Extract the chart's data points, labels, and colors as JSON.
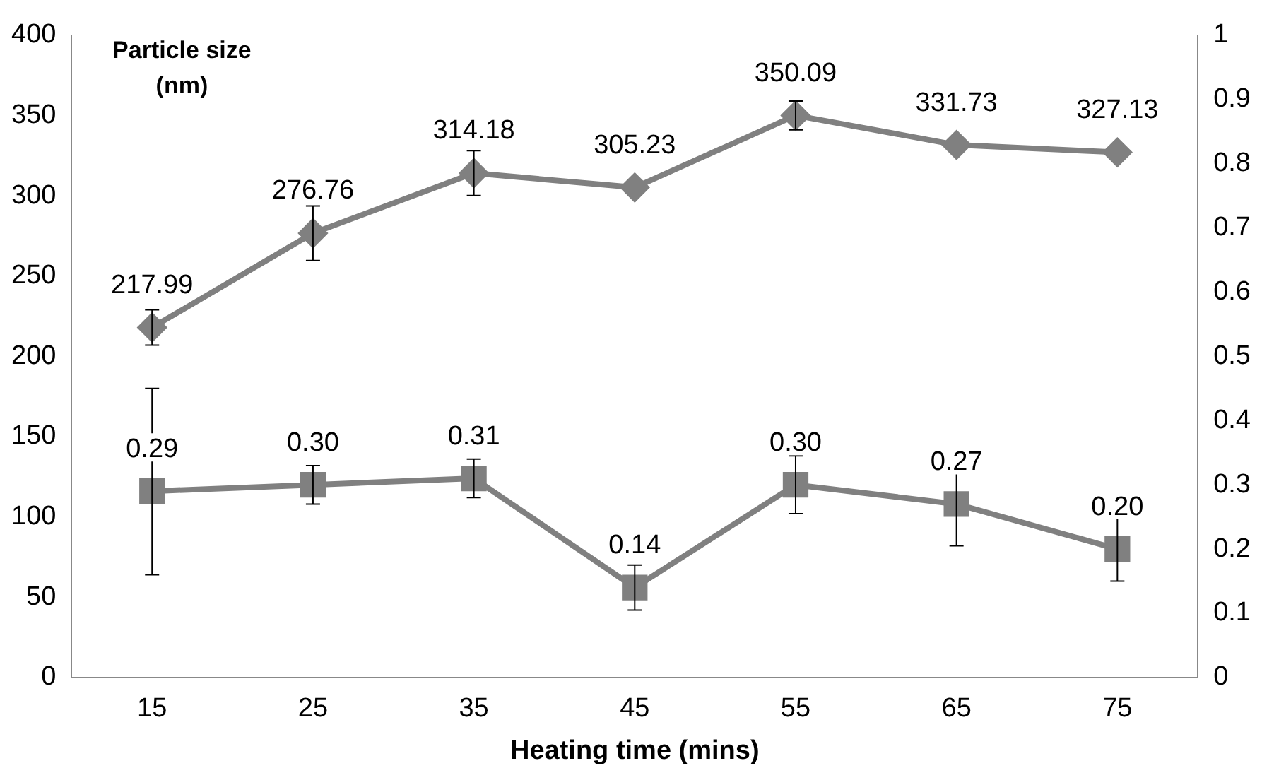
{
  "chart_data": {
    "type": "line",
    "xlabel": "Heating time (mins)",
    "ylabel": "Particle size (nm)",
    "categories": [
      "15",
      "25",
      "35",
      "45",
      "55",
      "65",
      "75"
    ],
    "series": [
      {
        "color": "#808080",
        "marker": "diamond",
        "values": [
          217.99,
          276.76,
          314.18,
          305.23,
          350.09,
          331.73,
          327.13
        ],
        "value_labels": [
          "217.99",
          "276.76",
          "314.18",
          "305.23",
          "350.09",
          "331.73",
          "327.13"
        ],
        "errors": [
          11,
          17,
          14,
          null,
          9,
          null,
          null
        ]
      },
      {
        "color": "#808080",
        "marker": "square",
        "axis": "y2",
        "values": [
          0.29,
          0.3,
          0.31,
          0.14,
          0.3,
          0.27,
          0.2
        ],
        "value_labels": [
          "0.29",
          "0.30",
          "0.31",
          "0.14",
          "0.30",
          "0.27",
          "0.20"
        ],
        "errors": [
          [
            0.16,
            0.45
          ],
          0.03,
          0.03,
          0.035,
          0.045,
          0.065,
          0.05
        ]
      }
    ],
    "ylim": [
      0,
      400
    ],
    "yticks": [
      0,
      50,
      100,
      150,
      200,
      250,
      300,
      350,
      400
    ],
    "y2lim": [
      0,
      1
    ],
    "y2ticks": [
      0,
      0.1,
      0.2,
      0.3,
      0.4,
      0.5,
      0.6,
      0.7,
      0.8,
      0.9,
      1
    ],
    "grid": false,
    "legend": false
  }
}
